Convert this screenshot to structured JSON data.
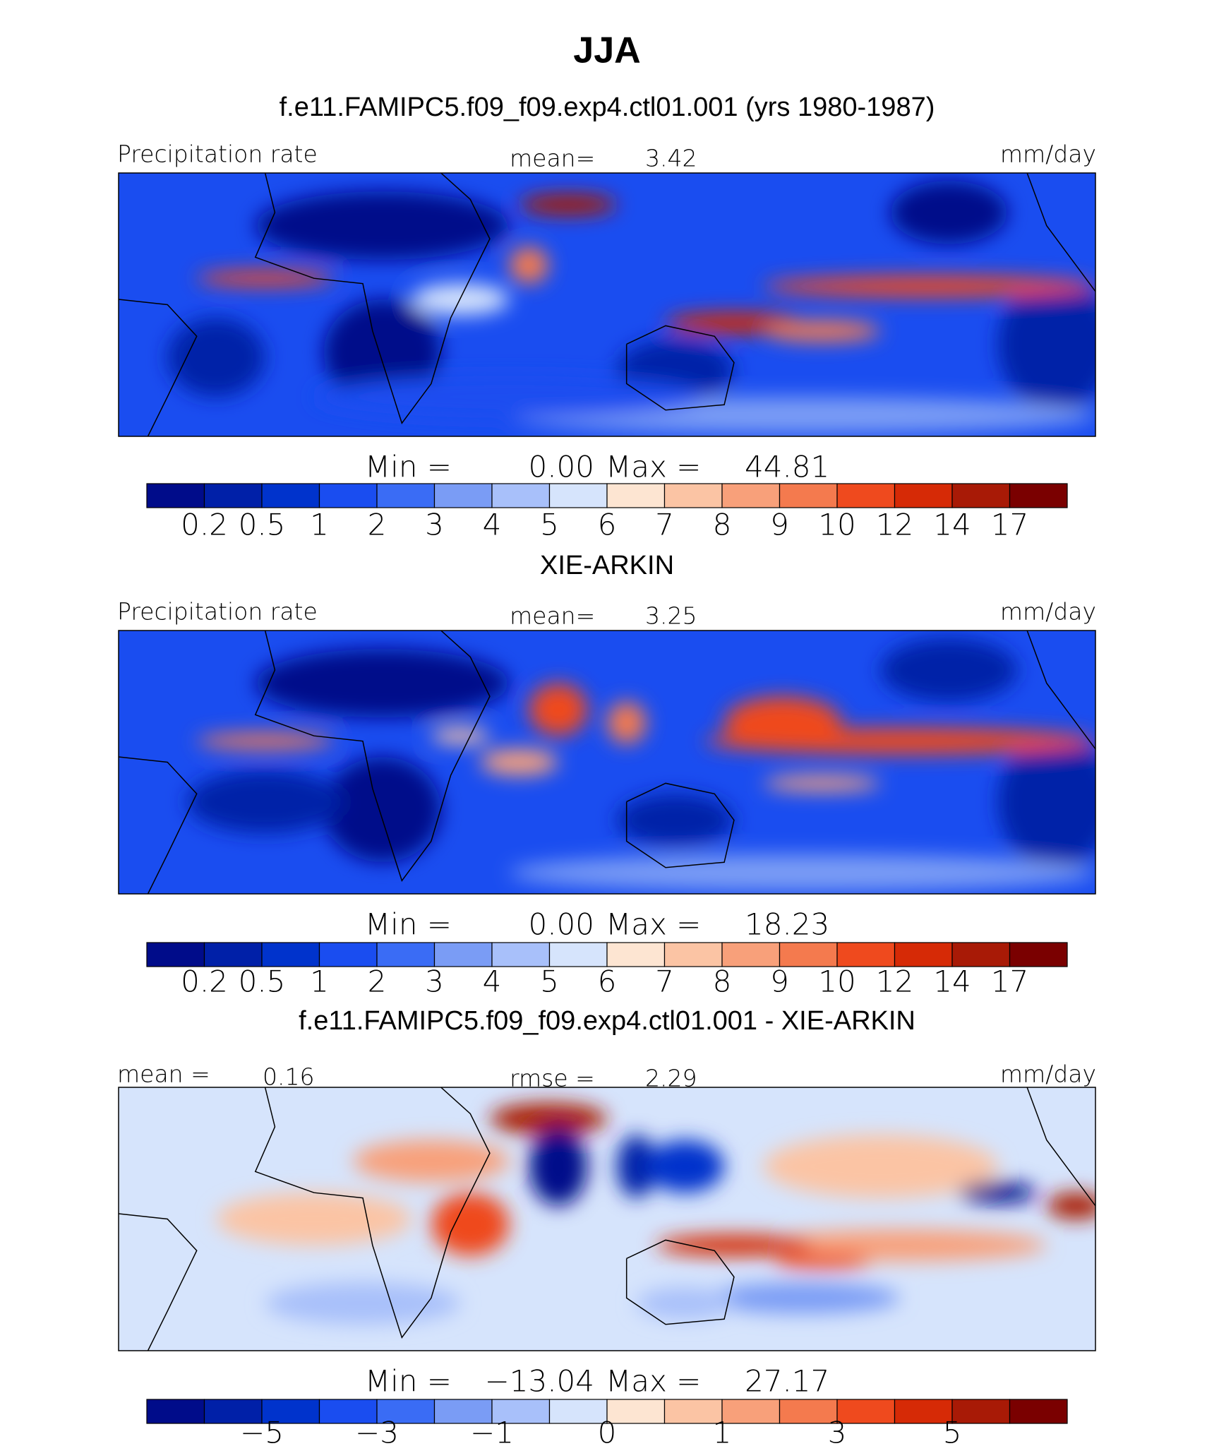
{
  "title": "JJA",
  "panels": [
    {
      "title": "f.e11.FAMIPC5.f09_f09.exp4.ctl01.001 (yrs 1980-1987)",
      "left": "Precipitation rate",
      "center": "mean=",
      "center_value": "3.42",
      "right": "mm/day",
      "min_label": "Min =",
      "min": "0.00",
      "max_label": "Max =",
      "max": "44.81",
      "colorbar": {
        "colors": [
          "#000c8a",
          "#0020a8",
          "#0033cc",
          "#1a4df0",
          "#3a6cf5",
          "#7a9cf5",
          "#a8c0fa",
          "#d6e4fc",
          "#fde5d2",
          "#fbc4a4",
          "#f8a07a",
          "#f47a4e",
          "#ef4a1e",
          "#d62a06",
          "#a81a06",
          "#7a0000"
        ],
        "labels": [
          "0.2",
          "0.5",
          "1",
          "2",
          "3",
          "4",
          "5",
          "6",
          "7",
          "8",
          "9",
          "10",
          "12",
          "14",
          "17"
        ]
      }
    },
    {
      "title": "XIE-ARKIN",
      "left": "Precipitation rate",
      "center": "mean=",
      "center_value": "3.25",
      "right": "mm/day",
      "min_label": "Min =",
      "min": "0.00",
      "max_label": "Max =",
      "max": "18.23",
      "colorbar": {
        "colors": [
          "#000c8a",
          "#0020a8",
          "#0033cc",
          "#1a4df0",
          "#3a6cf5",
          "#7a9cf5",
          "#a8c0fa",
          "#d6e4fc",
          "#fde5d2",
          "#fbc4a4",
          "#f8a07a",
          "#f47a4e",
          "#ef4a1e",
          "#d62a06",
          "#a81a06",
          "#7a0000"
        ],
        "labels": [
          "0.2",
          "0.5",
          "1",
          "2",
          "3",
          "4",
          "5",
          "6",
          "7",
          "8",
          "9",
          "10",
          "12",
          "14",
          "17"
        ]
      }
    },
    {
      "title": "f.e11.FAMIPC5.f09_f09.exp4.ctl01.001 - XIE-ARKIN",
      "left": "mean =",
      "left_value": "0.16",
      "center": "rmse =",
      "center_value": "2.29",
      "right": "mm/day",
      "min_label": "Min =",
      "min": "−13.04",
      "max_label": "Max =",
      "max": "27.17",
      "colorbar": {
        "colors": [
          "#000c8a",
          "#0020a8",
          "#0033cc",
          "#1a4df0",
          "#3a6cf5",
          "#7a9cf5",
          "#a8c0fa",
          "#d6e4fc",
          "#fde5d2",
          "#fbc4a4",
          "#f8a07a",
          "#f47a4e",
          "#ef4a1e",
          "#d62a06",
          "#a81a06",
          "#7a0000"
        ],
        "labels": [
          "−5",
          "−3",
          "−1",
          "0",
          "1",
          "3",
          "5"
        ]
      }
    }
  ]
}
